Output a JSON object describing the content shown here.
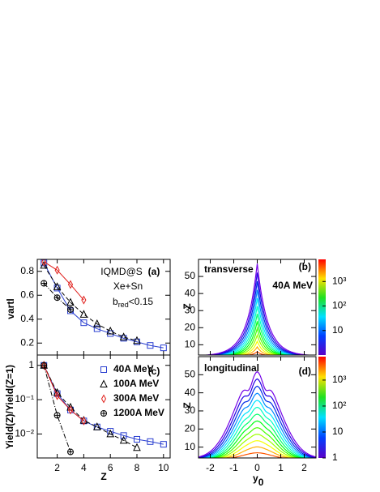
{
  "chart_data": [
    {
      "type": "line",
      "panel": "a",
      "ylabel": "vartl",
      "annotations": [
        "IQMD@S",
        "Xe+Sn",
        "(a)"
      ],
      "bred": {
        "base": "b",
        "sub": "red",
        "rest": "<0.15"
      },
      "xlim": [
        0.5,
        10.5
      ],
      "xticks": [
        2,
        4,
        6,
        8,
        10
      ],
      "ylim": [
        0.1,
        0.9
      ],
      "yticks": [
        0.2,
        0.4,
        0.6,
        0.8
      ],
      "series": [
        {
          "color": "#2a3fd0",
          "marker": "square",
          "dash": "solid",
          "x": [
            1,
            2,
            3,
            4,
            5,
            6,
            7,
            8,
            9,
            10
          ],
          "values": [
            0.87,
            0.66,
            0.47,
            0.37,
            0.32,
            0.28,
            0.24,
            0.21,
            0.18,
            0.16
          ]
        },
        {
          "color": "#000000",
          "marker": "triangle",
          "dash": "dashed",
          "x": [
            1,
            2,
            3,
            4,
            5,
            6,
            7,
            8
          ],
          "values": [
            0.85,
            0.67,
            0.54,
            0.44,
            0.36,
            0.3,
            0.25,
            0.22
          ]
        },
        {
          "color": "#e0201c",
          "marker": "diamond",
          "dash": "solid",
          "x": [
            1,
            2,
            3,
            4
          ],
          "values": [
            0.88,
            0.81,
            0.69,
            0.56
          ]
        },
        {
          "color": "#000000",
          "marker": "crosscircle",
          "dash": "dashdot",
          "x": [
            1,
            2,
            3
          ],
          "values": [
            0.7,
            0.58,
            0.48
          ]
        }
      ]
    },
    {
      "type": "line",
      "panel": "c",
      "log_y": true,
      "ylabel": "Yield(Z)/Yield(Z=1)",
      "xlabel": "Z",
      "annotations": [
        "(c)"
      ],
      "xlim": [
        0.5,
        10.5
      ],
      "xticks": [
        2,
        4,
        6,
        8,
        10
      ],
      "ylim": [
        0.002,
        2
      ],
      "yticks": [
        1,
        {
          "value": 0.1,
          "label": "10⁻¹"
        },
        {
          "value": 0.01,
          "label": "10⁻²"
        }
      ],
      "series": [
        {
          "name": "40A MeV",
          "color": "#2a3fd0",
          "marker": "square",
          "dash": "solid",
          "x": [
            1,
            2,
            3,
            4,
            5,
            6,
            7,
            8,
            9,
            10
          ],
          "values": [
            1,
            0.15,
            0.05,
            0.024,
            0.016,
            0.012,
            0.009,
            0.007,
            0.006,
            0.005
          ]
        },
        {
          "name": "100A MeV",
          "color": "#000000",
          "marker": "triangle",
          "dash": "dashed",
          "x": [
            1,
            2,
            3,
            4,
            5,
            6,
            7,
            8
          ],
          "values": [
            1,
            0.16,
            0.06,
            0.025,
            0.016,
            0.01,
            0.0065,
            0.004
          ]
        },
        {
          "name": "300A MeV",
          "color": "#e0201c",
          "marker": "diamond",
          "dash": "solid",
          "x": [
            1,
            2,
            3,
            4
          ],
          "values": [
            1,
            0.13,
            0.05,
            0.024
          ]
        },
        {
          "name": "1200A MeV",
          "color": "#000000",
          "marker": "crosscircle",
          "dash": "dashdot",
          "x": [
            1,
            2,
            3
          ],
          "values": [
            1,
            0.035,
            0.003
          ]
        }
      ]
    },
    {
      "type": "contour",
      "panel": "b",
      "ylabel": "Z",
      "annotations": [
        "transverse",
        "(b)",
        "40A MeV"
      ],
      "xlim": [
        -2.5,
        2.5
      ],
      "xticks": [
        -2,
        -1,
        0,
        1,
        2
      ],
      "ylim": [
        4,
        60
      ],
      "yticks": [
        10,
        20,
        30,
        40,
        50
      ],
      "zlim": [
        1,
        8000
      ],
      "zticks": [
        10,
        {
          "value": 100,
          "label": "10²"
        },
        {
          "value": 1000,
          "label": "10³"
        }
      ]
    },
    {
      "type": "contour",
      "panel": "d",
      "ylabel": "Z",
      "annotations": [
        "longitudinal",
        "(d)"
      ],
      "xlabel": {
        "base": "y",
        "sub": "0"
      },
      "xlim": [
        -2.5,
        2.5
      ],
      "xticks": [
        -2,
        -1,
        0,
        1,
        2
      ],
      "ylim": [
        4,
        60
      ],
      "yticks": [
        10,
        20,
        30,
        40,
        50
      ],
      "zlim": [
        1,
        8000
      ],
      "zticks": [
        1,
        10,
        {
          "value": 100,
          "label": "10²"
        },
        {
          "value": 1000,
          "label": "10³"
        }
      ]
    }
  ]
}
